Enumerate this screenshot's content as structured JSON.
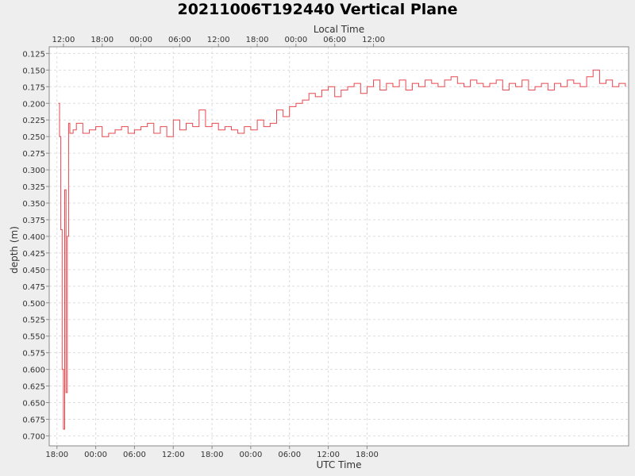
{
  "chart_data": {
    "type": "line",
    "title": "20211006T192440 Vertical Plane",
    "top_axis_label": "Local Time",
    "xlabel": "UTC Time",
    "ylabel": "depth (m)",
    "y_inverted": true,
    "ylim": [
      0.115,
      0.715
    ],
    "y_ticks": [
      "0.125",
      "0.150",
      "0.175",
      "0.200",
      "0.225",
      "0.250",
      "0.275",
      "0.300",
      "0.325",
      "0.350",
      "0.375",
      "0.400",
      "0.425",
      "0.450",
      "0.475",
      "0.500",
      "0.525",
      "0.550",
      "0.575",
      "0.600",
      "0.625",
      "0.650",
      "0.675",
      "0.700"
    ],
    "x_range_hours": [
      -19.2,
      70.5
    ],
    "x_ticks_utc": [
      "18:00",
      "00:00",
      "06:00",
      "12:00",
      "18:00",
      "00:00",
      "06:00",
      "12:00",
      "18:00"
    ],
    "x_ticks_local": [
      "12:00",
      "18:00",
      "00:00",
      "06:00",
      "12:00",
      "18:00",
      "00:00",
      "06:00",
      "12:00"
    ],
    "grid": true,
    "line_color": "#e8484f",
    "series": [
      {
        "hours": [
          -17.8,
          -17.6,
          -17.4,
          -17.2,
          -17.0,
          -16.8,
          -16.6,
          -16.4,
          -16.2,
          -16.0,
          -15.5,
          -15.0,
          -14.0,
          -13.0,
          -12.0,
          -11.0,
          -10.0,
          -9.0,
          -8.0,
          -7.0,
          -6.0,
          -5.0,
          -4.0,
          -3.0,
          -2.0,
          -1.0,
          0.0,
          1.0,
          2.0,
          3.0,
          4.0,
          5.0,
          6.0,
          7.0,
          8.0,
          9.0,
          10.0,
          11.0,
          12.0,
          13.0,
          14.0,
          15.0,
          16.0,
          17.0,
          18.0,
          19.0,
          20.0,
          21.0,
          22.0,
          23.0,
          24.0,
          25.0,
          26.0,
          27.0,
          28.0,
          29.0,
          30.0,
          31.0,
          32.0,
          33.0,
          34.0,
          35.0,
          36.0,
          37.0,
          38.0,
          39.0,
          40.0,
          41.0,
          42.0,
          43.0,
          44.0,
          45.0,
          46.0,
          47.0,
          48.0,
          49.0,
          50.0,
          51.0,
          52.0,
          53.0,
          54.0,
          55.0,
          56.0,
          57.0,
          58.0,
          59.0,
          60.0,
          61.0,
          62.0,
          63.0,
          64.0,
          65.0,
          66.0,
          67.0,
          68.0,
          69.0,
          70.0
        ],
        "depth": [
          0.2,
          0.25,
          0.39,
          0.6,
          0.69,
          0.33,
          0.635,
          0.4,
          0.23,
          0.245,
          0.24,
          0.23,
          0.245,
          0.24,
          0.235,
          0.25,
          0.245,
          0.24,
          0.235,
          0.245,
          0.24,
          0.235,
          0.23,
          0.245,
          0.235,
          0.25,
          0.225,
          0.24,
          0.23,
          0.235,
          0.21,
          0.235,
          0.23,
          0.24,
          0.235,
          0.24,
          0.245,
          0.235,
          0.24,
          0.225,
          0.235,
          0.23,
          0.21,
          0.22,
          0.205,
          0.2,
          0.195,
          0.185,
          0.19,
          0.18,
          0.175,
          0.19,
          0.18,
          0.175,
          0.17,
          0.185,
          0.175,
          0.165,
          0.18,
          0.17,
          0.175,
          0.165,
          0.18,
          0.17,
          0.175,
          0.165,
          0.17,
          0.175,
          0.165,
          0.16,
          0.17,
          0.175,
          0.165,
          0.17,
          0.175,
          0.17,
          0.165,
          0.18,
          0.17,
          0.175,
          0.165,
          0.18,
          0.175,
          0.17,
          0.18,
          0.17,
          0.175,
          0.165,
          0.17,
          0.175,
          0.16,
          0.15,
          0.17,
          0.165,
          0.175,
          0.17,
          0.175
        ]
      }
    ]
  }
}
